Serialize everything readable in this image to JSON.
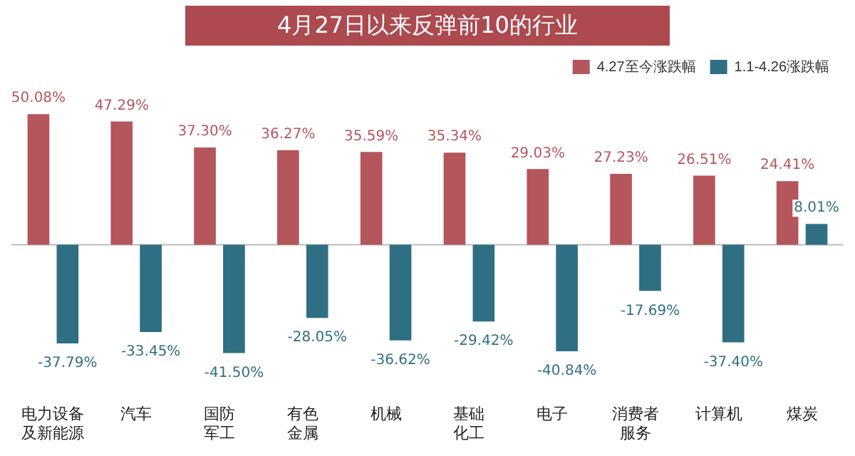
{
  "chart_data": {
    "type": "bar",
    "title": "4月27日以来反弹前10的行业",
    "categories": [
      "电力设备及新能源",
      "汽车",
      "国防军工",
      "有色金属",
      "机械",
      "基础化工",
      "电子",
      "消费者服务",
      "计算机",
      "煤炭"
    ],
    "series": [
      {
        "name": "4.27至今涨跌幅",
        "color": "#b5555c",
        "values": [
          50.08,
          47.29,
          37.3,
          36.27,
          35.59,
          35.34,
          29.03,
          27.23,
          26.51,
          24.41
        ],
        "value_labels": [
          "50.08%",
          "47.29%",
          "37.30%",
          "36.27%",
          "35.59%",
          "35.34%",
          "29.03%",
          "27.23%",
          "26.51%",
          "24.41%"
        ]
      },
      {
        "name": "1.1-4.26涨跌幅",
        "color": "#2f6f84",
        "values": [
          -37.79,
          -33.45,
          -41.5,
          -28.05,
          -36.62,
          -29.42,
          -40.84,
          -17.69,
          -37.4,
          8.01
        ],
        "value_labels": [
          "-37.79%",
          "-33.45%",
          "-41.50%",
          "-28.05%",
          "-36.62%",
          "-29.42%",
          "-40.84%",
          "-17.69%",
          "-37.40%",
          "8.01%"
        ]
      }
    ],
    "legend": "top right",
    "grid": false
  }
}
